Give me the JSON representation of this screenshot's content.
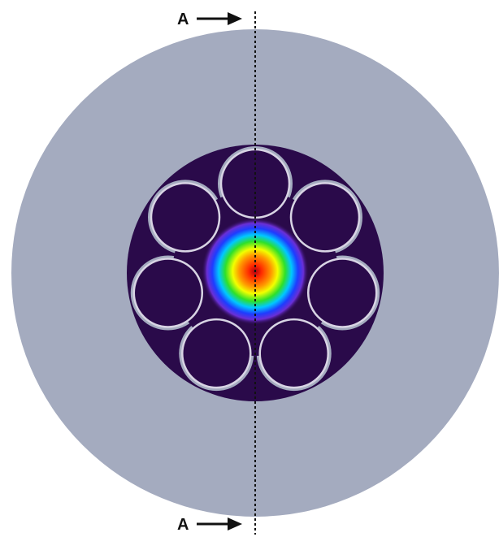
{
  "section_marker": {
    "top_label": "A",
    "bottom_label": "A"
  },
  "colors": {
    "background": "#ffffff",
    "cladding": "#a4abbf",
    "core_region": "#2a0a4a",
    "capillary_outline": "#d8d4e4",
    "section_line": "#111111",
    "mode_gradient": [
      "#b00012",
      "#ff2a00",
      "#ff9900",
      "#f2ff00",
      "#2ee02a",
      "#00c8ff",
      "#1e3cff",
      "#6a2fd6",
      "#2a0a4a"
    ]
  },
  "structure": {
    "capillary_count": 7
  }
}
